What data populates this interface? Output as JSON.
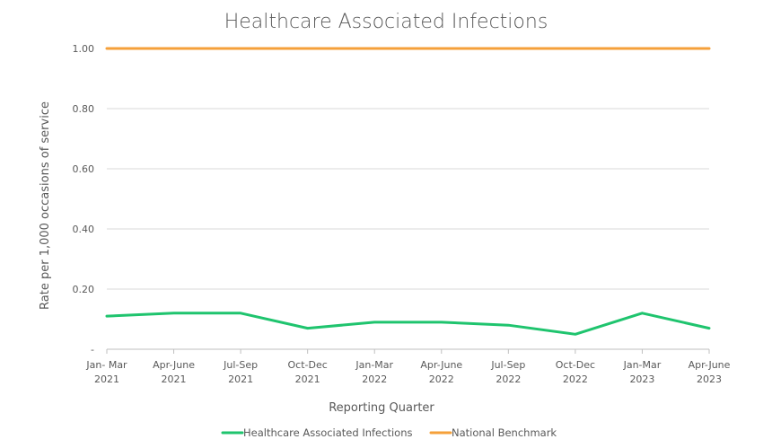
{
  "colors": {
    "infections": "#1fc46e",
    "benchmark": "#f5a03a"
  },
  "chart_data": {
    "type": "line",
    "title": "Healthcare Associated Infections",
    "xlabel": "Reporting Quarter",
    "ylabel": "Rate per 1,000 occasions of service",
    "ylim": [
      0,
      1.0
    ],
    "yticks": [
      {
        "value": 0,
        "label": "-"
      },
      {
        "value": 0.2,
        "label": "0.20"
      },
      {
        "value": 0.4,
        "label": "0.40"
      },
      {
        "value": 0.6,
        "label": "0.60"
      },
      {
        "value": 0.8,
        "label": "0.80"
      },
      {
        "value": 1.0,
        "label": "1.00"
      }
    ],
    "categories": [
      [
        "Jan- Mar",
        "2021"
      ],
      [
        "Apr-June",
        "2021"
      ],
      [
        "Jul-Sep",
        "2021"
      ],
      [
        "Oct-Dec",
        "2021"
      ],
      [
        "Jan-Mar",
        "2022"
      ],
      [
        "Apr-June",
        "2022"
      ],
      [
        "Jul-Sep",
        "2022"
      ],
      [
        "Oct-Dec",
        "2022"
      ],
      [
        "Jan-Mar",
        "2023"
      ],
      [
        "Apr-June",
        "2023"
      ]
    ],
    "series": [
      {
        "name": "Healthcare Associated Infections",
        "color": "#1fc46e",
        "values": [
          0.11,
          0.12,
          0.12,
          0.07,
          0.09,
          0.09,
          0.08,
          0.05,
          0.12,
          0.07
        ]
      },
      {
        "name": "National Benchmark",
        "color": "#f5a03a",
        "values": [
          1.0,
          1.0,
          1.0,
          1.0,
          1.0,
          1.0,
          1.0,
          1.0,
          1.0,
          1.0
        ]
      }
    ],
    "grid": true,
    "legend": "bottom"
  }
}
